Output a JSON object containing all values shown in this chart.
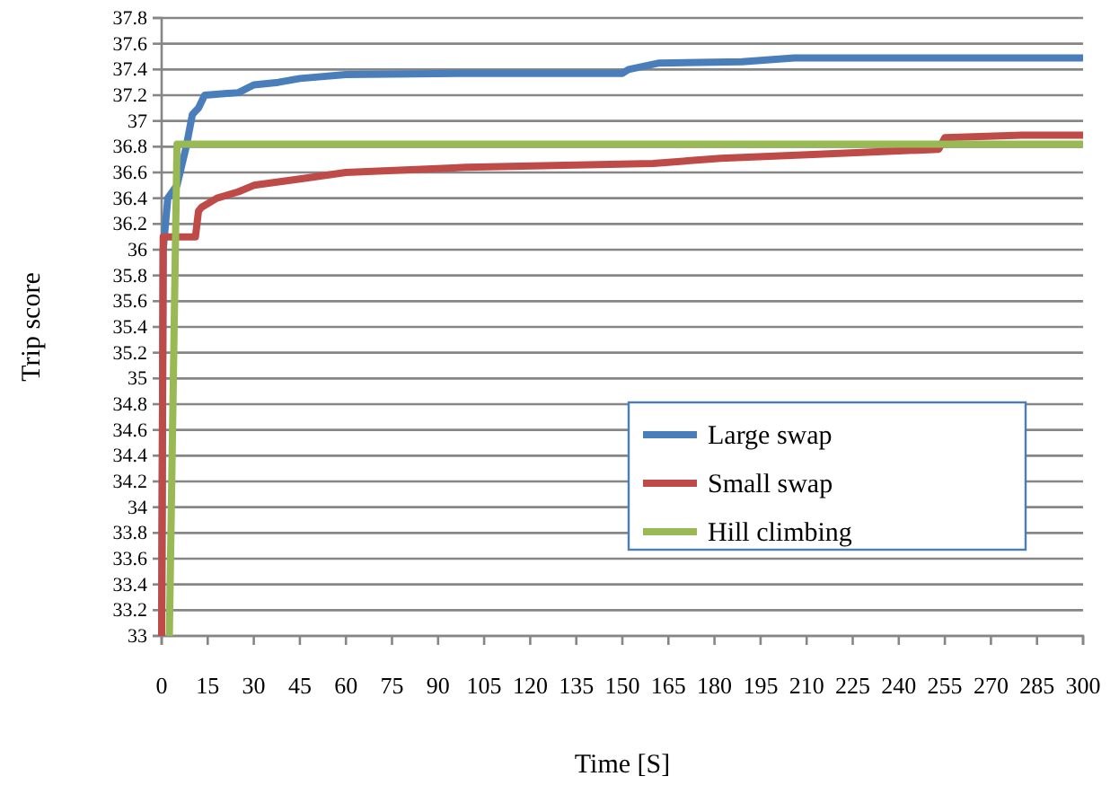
{
  "chart_data": {
    "type": "line",
    "xlabel": "Time [S]",
    "ylabel": "Trip score",
    "xlim": [
      0,
      300
    ],
    "ylim": [
      33,
      37.8
    ],
    "xticks": [
      0,
      15,
      30,
      45,
      60,
      75,
      90,
      105,
      120,
      135,
      150,
      165,
      180,
      195,
      210,
      225,
      240,
      255,
      270,
      285,
      300
    ],
    "yticks": [
      33,
      33.2,
      33.4,
      33.6,
      33.8,
      34,
      34.2,
      34.4,
      34.6,
      34.8,
      35,
      35.2,
      35.4,
      35.6,
      35.8,
      36,
      36.2,
      36.4,
      36.6,
      36.8,
      37,
      37.2,
      37.4,
      37.6,
      37.8
    ],
    "grid": "y",
    "legend": "right",
    "line_style": "solid",
    "marker": "none",
    "series": [
      {
        "name": "Large swap",
        "color": "#4a7ebb",
        "x": [
          0,
          0.5,
          2,
          5,
          7,
          8,
          10,
          12,
          14,
          25,
          30,
          38,
          45,
          60,
          100,
          150,
          152,
          162,
          189,
          206,
          300
        ],
        "values": [
          33,
          36,
          36.4,
          36.5,
          36.7,
          36.8,
          37.05,
          37.1,
          37.2,
          37.22,
          37.28,
          37.3,
          37.33,
          37.36,
          37.37,
          37.37,
          37.4,
          37.45,
          37.46,
          37.49,
          37.49
        ]
      },
      {
        "name": "Small swap",
        "color": "#be4b48",
        "x": [
          0,
          0.5,
          2,
          11,
          12,
          13,
          18,
          25,
          30,
          45,
          60,
          99,
          160,
          182,
          212,
          253,
          255,
          280,
          300
        ],
        "values": [
          33,
          36.1,
          36.1,
          36.1,
          36.3,
          36.33,
          36.4,
          36.45,
          36.5,
          36.55,
          36.6,
          36.64,
          36.67,
          36.71,
          36.74,
          36.78,
          36.87,
          36.89,
          36.89
        ]
      },
      {
        "name": "Hill climbing",
        "color": "#98b954",
        "x": [
          2.5,
          5,
          300
        ],
        "values": [
          33,
          36.82,
          36.82
        ]
      }
    ]
  }
}
